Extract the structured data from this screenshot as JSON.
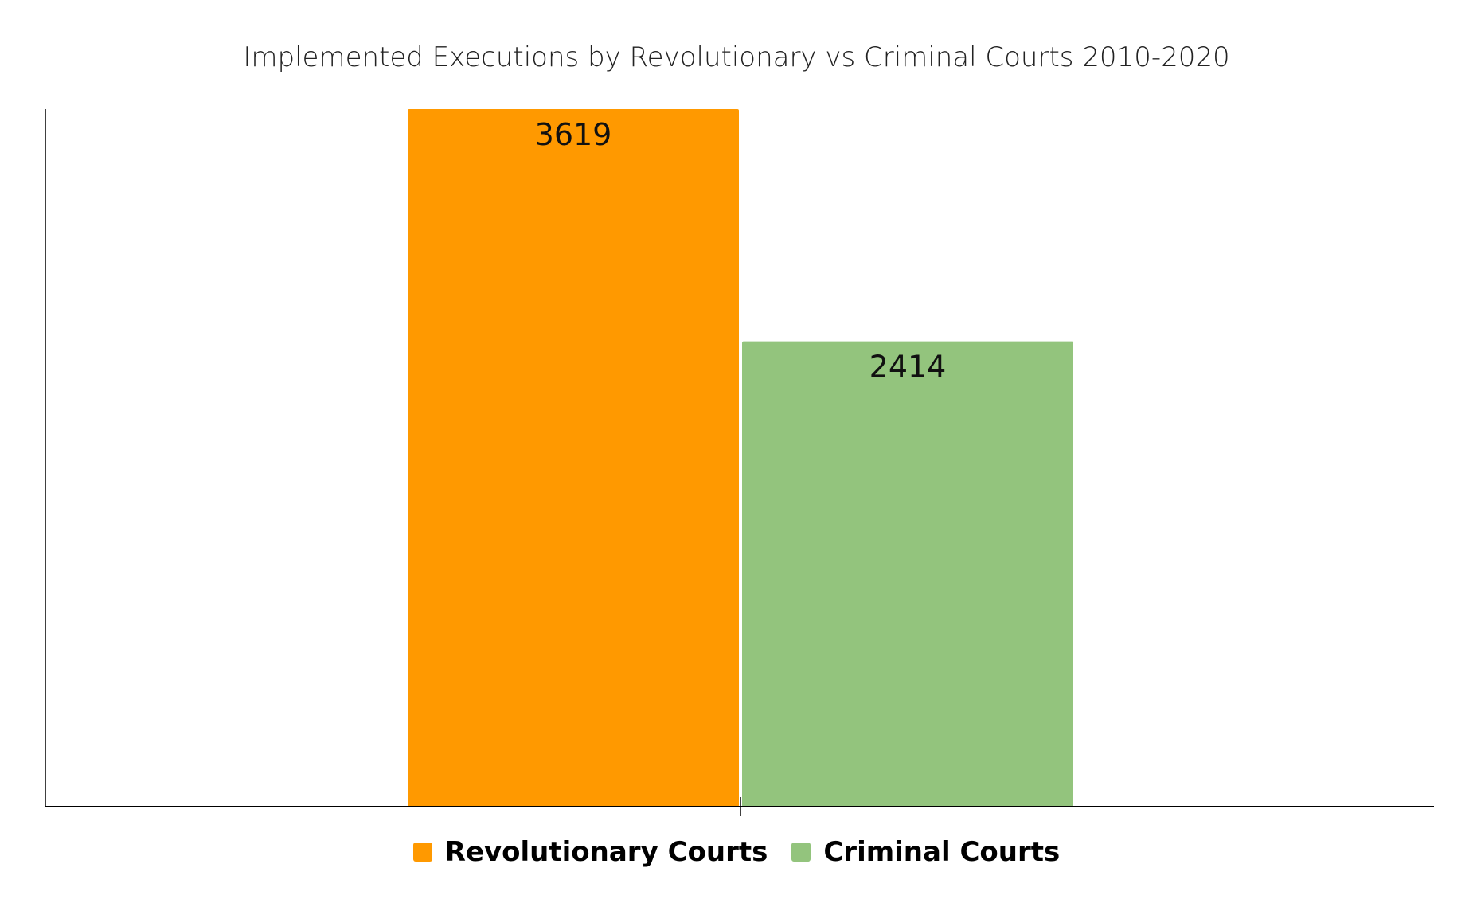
{
  "chart_data": {
    "type": "bar",
    "title": "Implemented Executions by Revolutionary vs Criminal Courts 2010-2020",
    "categories": [
      ""
    ],
    "series": [
      {
        "name": "Revolutionary Courts",
        "values": [
          3619
        ],
        "color": "#FF9900"
      },
      {
        "name": "Criminal Courts",
        "values": [
          2414
        ],
        "color": "#93C47D"
      }
    ],
    "data_labels": true,
    "ylim": [
      0,
      3619
    ],
    "grid": false,
    "legend": "bottom",
    "xlabel": "",
    "ylabel": ""
  }
}
